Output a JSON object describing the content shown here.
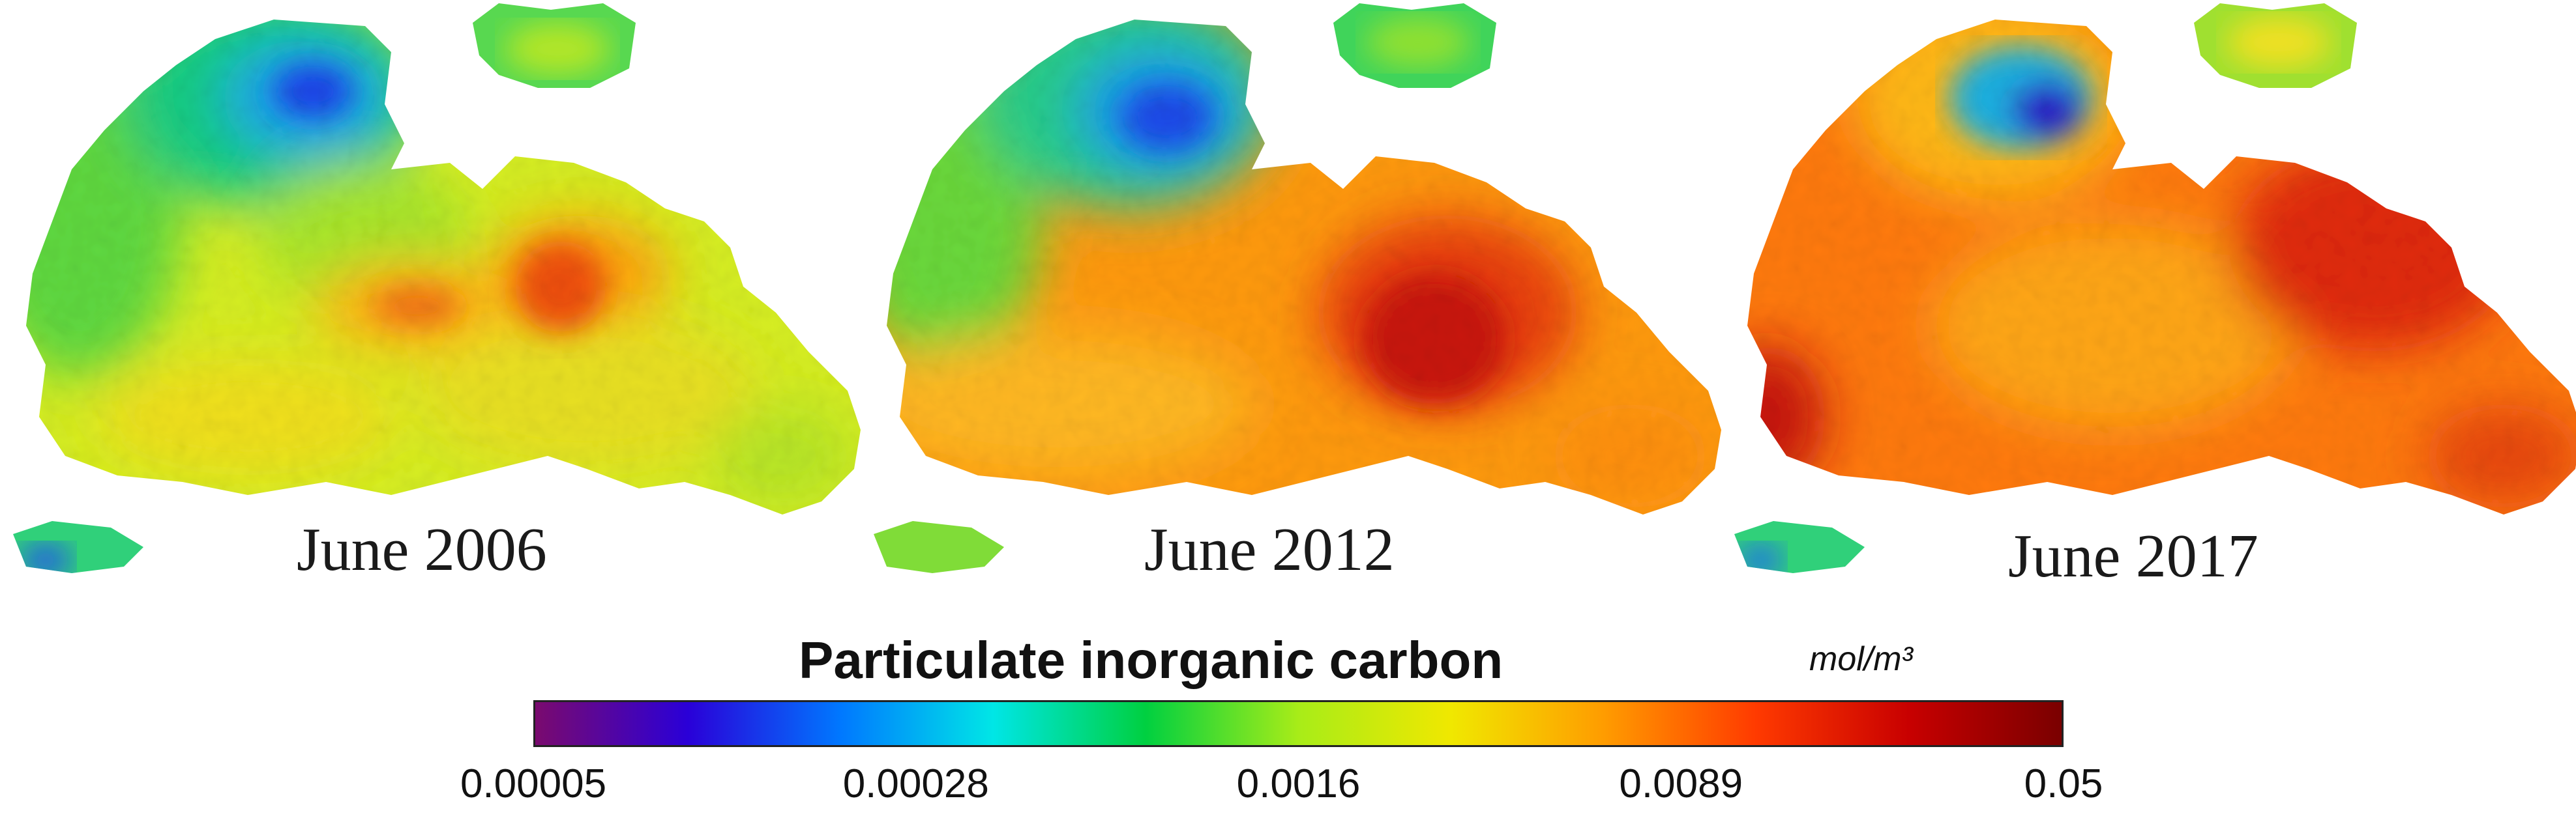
{
  "panels": [
    {
      "label": "June 2006"
    },
    {
      "label": "June 2012"
    },
    {
      "label": "June 2017"
    }
  ],
  "colorbar": {
    "title": "Particulate inorganic carbon",
    "units": "mol/m³",
    "scale": "log",
    "min": 5e-05,
    "max": 0.05,
    "ticks": [
      "0.00005",
      "0.00028",
      "0.0016",
      "0.0089",
      "0.05"
    ],
    "colors": [
      "#7a0a6e",
      "#2a00d8",
      "#0078ff",
      "#00e6e6",
      "#00d040",
      "#a8ec18",
      "#f0e800",
      "#ff9c00",
      "#ff3a00",
      "#c80000",
      "#7a0000"
    ]
  }
}
